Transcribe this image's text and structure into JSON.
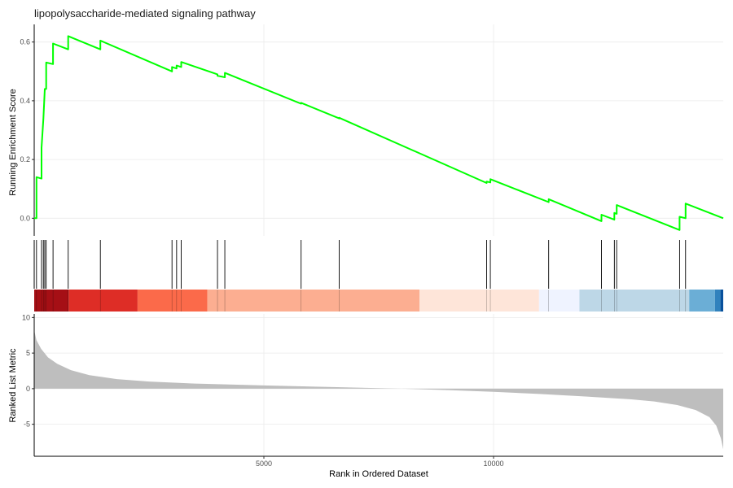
{
  "chart_data": {
    "type": "line",
    "title": "lipopolysaccharide-mediated signaling pathway",
    "xlabel": "Rank in Ordered Dataset",
    "xlim": [
      0,
      15000
    ],
    "x_ticks": [
      5000,
      10000
    ],
    "grid": true,
    "colors": {
      "es_line": "#00ff00",
      "hit_line": "#000000",
      "metric_fill": "#bebebe",
      "grid": "#ebebeb",
      "axis": "#000000"
    },
    "running_score": {
      "ylabel": "Running Enrichment Score",
      "ylim": [
        -0.06,
        0.66
      ],
      "y_ticks": [
        0.0,
        0.2,
        0.4,
        0.6
      ],
      "y_tick_labels": [
        "0.0",
        "0.2",
        "0.4",
        "0.6"
      ],
      "points": [
        [
          0,
          0.0
        ],
        [
          50,
          0.0
        ],
        [
          50,
          0.14
        ],
        [
          160,
          0.135
        ],
        [
          160,
          0.24
        ],
        [
          200,
          0.34
        ],
        [
          230,
          0.44
        ],
        [
          260,
          0.44
        ],
        [
          260,
          0.53
        ],
        [
          410,
          0.525
        ],
        [
          410,
          0.595
        ],
        [
          740,
          0.575
        ],
        [
          740,
          0.62
        ],
        [
          1440,
          0.575
        ],
        [
          1440,
          0.605
        ],
        [
          3000,
          0.5
        ],
        [
          3000,
          0.515
        ],
        [
          3100,
          0.51
        ],
        [
          3100,
          0.52
        ],
        [
          3200,
          0.515
        ],
        [
          3200,
          0.532
        ],
        [
          3990,
          0.49
        ],
        [
          3990,
          0.485
        ],
        [
          4150,
          0.48
        ],
        [
          4150,
          0.495
        ],
        [
          5810,
          0.39
        ],
        [
          5810,
          0.393
        ],
        [
          6640,
          0.34
        ],
        [
          6640,
          0.342
        ],
        [
          9850,
          0.12
        ],
        [
          9850,
          0.125
        ],
        [
          9930,
          0.122
        ],
        [
          9930,
          0.133
        ],
        [
          11200,
          0.055
        ],
        [
          11200,
          0.065
        ],
        [
          12350,
          -0.01
        ],
        [
          12350,
          0.012
        ],
        [
          12630,
          -0.005
        ],
        [
          12630,
          0.018
        ],
        [
          12680,
          0.015
        ],
        [
          12680,
          0.045
        ],
        [
          14050,
          -0.04
        ],
        [
          14050,
          0.005
        ],
        [
          14180,
          0.0
        ],
        [
          14180,
          0.05
        ],
        [
          15000,
          0.0
        ]
      ]
    },
    "gene_hits": {
      "ranks": [
        50,
        160,
        200,
        230,
        260,
        410,
        740,
        1440,
        3000,
        3100,
        3200,
        3990,
        4150,
        5810,
        6640,
        9850,
        9930,
        11200,
        12350,
        12630,
        12680,
        14050,
        14180
      ]
    },
    "color_strip": {
      "segments": [
        {
          "start": 0,
          "end": 750,
          "color": "#a50f15"
        },
        {
          "start": 750,
          "end": 2250,
          "color": "#de2d26"
        },
        {
          "start": 2250,
          "end": 3770,
          "color": "#fb6a4a"
        },
        {
          "start": 3770,
          "end": 8390,
          "color": "#fcae91"
        },
        {
          "start": 8390,
          "end": 10990,
          "color": "#fee5d9"
        },
        {
          "start": 10990,
          "end": 11870,
          "color": "#eff3ff"
        },
        {
          "start": 11870,
          "end": 14260,
          "color": "#bdd7e7"
        },
        {
          "start": 14260,
          "end": 14820,
          "color": "#6baed6"
        },
        {
          "start": 14820,
          "end": 14940,
          "color": "#3182bd"
        },
        {
          "start": 14940,
          "end": 15000,
          "color": "#08519c"
        }
      ]
    },
    "ranked_metric": {
      "ylabel": "Ranked List Metric",
      "ylim": [
        -9.5,
        10.5
      ],
      "y_ticks": [
        -5,
        0,
        5,
        10
      ],
      "y_tick_labels": [
        "-5",
        "0",
        "5",
        "10"
      ],
      "profile": [
        [
          0,
          8.2
        ],
        [
          50,
          6.8
        ],
        [
          150,
          5.6
        ],
        [
          300,
          4.4
        ],
        [
          500,
          3.5
        ],
        [
          800,
          2.6
        ],
        [
          1200,
          1.9
        ],
        [
          1800,
          1.35
        ],
        [
          2500,
          1.0
        ],
        [
          3500,
          0.72
        ],
        [
          5000,
          0.45
        ],
        [
          6500,
          0.22
        ],
        [
          7500,
          0.08
        ],
        [
          8000,
          0.0
        ],
        [
          9000,
          -0.2
        ],
        [
          10000,
          -0.45
        ],
        [
          11000,
          -0.75
        ],
        [
          12000,
          -1.1
        ],
        [
          13000,
          -1.5
        ],
        [
          13500,
          -1.8
        ],
        [
          14000,
          -2.3
        ],
        [
          14400,
          -3.0
        ],
        [
          14700,
          -4.0
        ],
        [
          14850,
          -5.2
        ],
        [
          14950,
          -7.0
        ],
        [
          15000,
          -8.5
        ]
      ]
    }
  }
}
